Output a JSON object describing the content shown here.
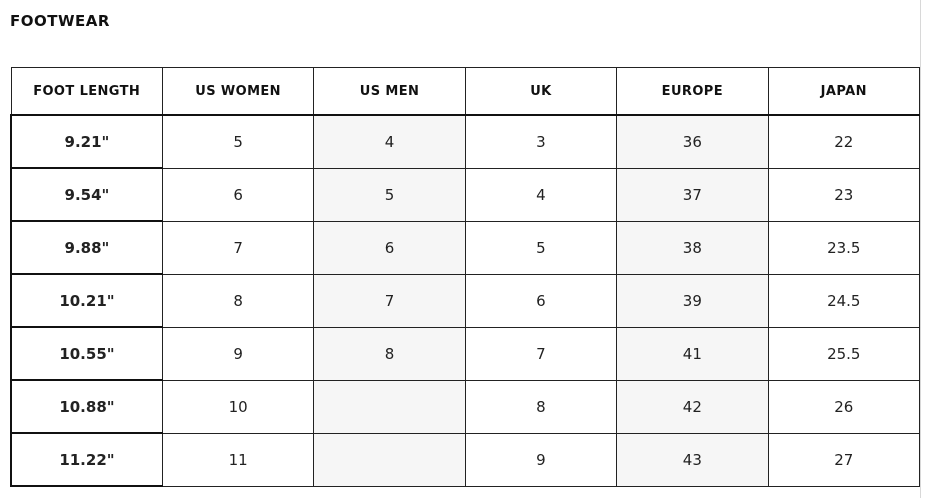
{
  "title": "FOOTWEAR",
  "table": {
    "headers": [
      "FOOT LENGTH",
      "US WOMEN",
      "US MEN",
      "UK",
      "EUROPE",
      "JAPAN"
    ],
    "rows": [
      [
        "9.21\"",
        "5",
        "4",
        "3",
        "36",
        "22"
      ],
      [
        "9.54\"",
        "6",
        "5",
        "4",
        "37",
        "23"
      ],
      [
        "9.88\"",
        "7",
        "6",
        "5",
        "38",
        "23.5"
      ],
      [
        "10.21\"",
        "8",
        "7",
        "6",
        "39",
        "24.5"
      ],
      [
        "10.55\"",
        "9",
        "8",
        "7",
        "41",
        "25.5"
      ],
      [
        "10.88\"",
        "10",
        "",
        "8",
        "42",
        "26"
      ],
      [
        "11.22\"",
        "11",
        "",
        "9",
        "43",
        "27"
      ]
    ]
  },
  "colors": {
    "shaded_column_bg": "#f6f6f6",
    "border": "#222222"
  }
}
